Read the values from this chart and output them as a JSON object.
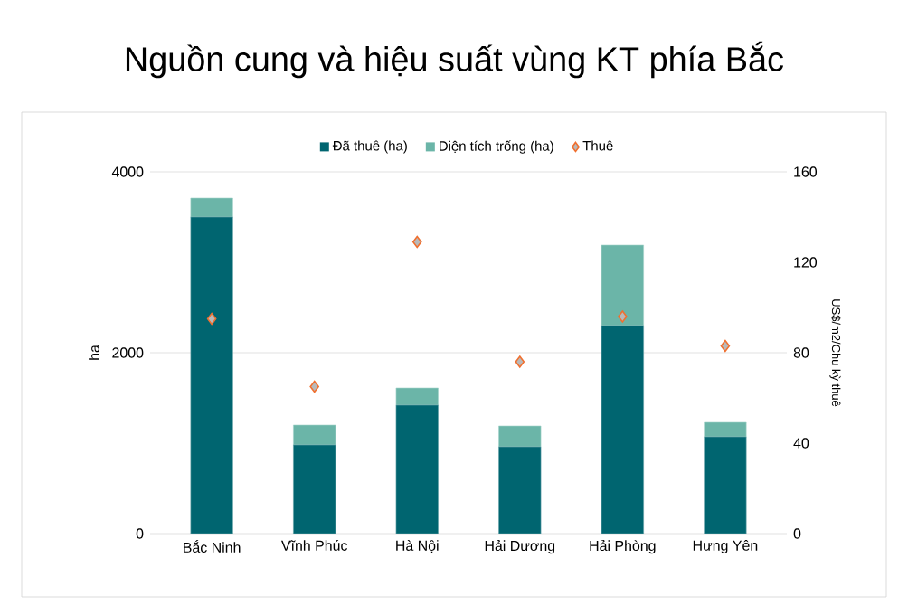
{
  "chart_data": {
    "type": "bar",
    "title": "Nguồn cung và hiệu suất vùng KT phía Bắc",
    "stacked": true,
    "categories": [
      "Bắc Ninh",
      "Vĩnh Phúc",
      "Hà Nội",
      "Hải Dương",
      "Hải Phòng",
      "Hưng Yên"
    ],
    "series": [
      {
        "name": "Đã thuê (ha)",
        "color": "#006570",
        "values": [
          3500,
          980,
          1420,
          960,
          2300,
          1070
        ]
      },
      {
        "name": "Diện tích trống (ha)",
        "color": "#6bb5a8",
        "values": [
          210,
          220,
          190,
          230,
          890,
          160
        ]
      },
      {
        "name": "Thuê",
        "type": "scatter",
        "axis": "y2",
        "marker": "diamond",
        "color": "#f07030",
        "values": [
          95,
          65,
          129,
          76,
          96,
          83
        ]
      }
    ],
    "ylabel": "ha",
    "y2label": "US$/m2/Chu kỳ thuê",
    "ylim": [
      0,
      4000
    ],
    "yticks": [
      0,
      2000,
      4000
    ],
    "y2lim": [
      0,
      160
    ],
    "y2ticks": [
      0,
      40,
      80,
      120,
      160
    ],
    "grid": "y",
    "legend": "top"
  }
}
